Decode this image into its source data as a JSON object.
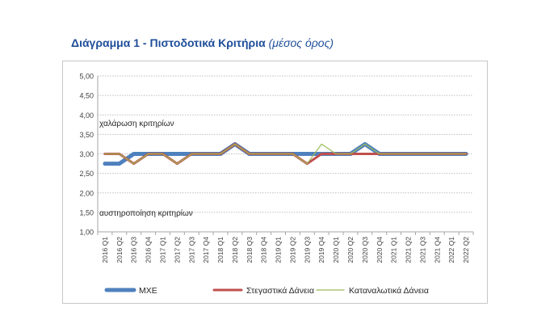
{
  "title": {
    "main": "Διάγραμμα 1 - Πιστοδοτικά Κριτήρια",
    "sub": "(μέσος όρος)"
  },
  "chart_data": {
    "type": "line",
    "categories": [
      "2016 Q1",
      "2016 Q2",
      "2016 Q3",
      "2016 Q4",
      "2017 Q1",
      "2017 Q2",
      "2017 Q3",
      "2017 Q4",
      "2018 Q1",
      "2018 Q2",
      "2018 Q3",
      "2018 Q4",
      "2019 Q1",
      "2019 Q2",
      "2019 Q3",
      "2019 Q4",
      "2020 Q1",
      "2020 Q2",
      "2020 Q3",
      "2020 Q4",
      "2021 Q1",
      "2021 Q2",
      "2021 Q3",
      "2021 Q4",
      "2022 Q1",
      "2022 Q2"
    ],
    "series": [
      {
        "name": "ΜΧΕ",
        "color": "#4f81bd",
        "values": [
          2.75,
          2.75,
          3.0,
          3.0,
          3.0,
          3.0,
          3.0,
          3.0,
          3.0,
          3.25,
          3.0,
          3.0,
          3.0,
          3.0,
          3.0,
          3.0,
          3.0,
          3.0,
          3.25,
          3.0,
          3.0,
          3.0,
          3.0,
          3.0,
          3.0,
          3.0
        ]
      },
      {
        "name": "Στεγαστικά Δάνεια",
        "color": "#c0504d",
        "values": [
          3.0,
          3.0,
          2.75,
          3.0,
          3.0,
          2.75,
          3.0,
          3.0,
          3.0,
          3.25,
          3.0,
          3.0,
          3.0,
          3.0,
          2.75,
          3.0,
          3.0,
          3.0,
          3.0,
          3.0,
          3.0,
          3.0,
          3.0,
          3.0,
          3.0,
          3.0
        ]
      },
      {
        "name": "Καταναλωτικά Δάνεια",
        "color": "#9bbb59",
        "values": [
          3.0,
          3.0,
          2.75,
          3.0,
          3.0,
          2.75,
          3.0,
          3.0,
          3.0,
          3.25,
          3.0,
          3.0,
          3.0,
          3.0,
          2.75,
          3.25,
          3.0,
          3.0,
          3.25,
          3.0,
          3.0,
          3.0,
          3.0,
          3.0,
          3.0,
          3.0
        ]
      }
    ],
    "y_ticks": [
      "5,00",
      "4,50",
      "4,00",
      "3,50",
      "3,00",
      "2,50",
      "2,00",
      "1,50",
      "1,00"
    ],
    "ylim": [
      1.0,
      5.0
    ],
    "grid": true,
    "legend_position": "bottom",
    "annotations": [
      {
        "text": "χαλάρωση κριτηρίων",
        "y": 3.8
      },
      {
        "text": "αυστηροποίηση κριτηρίων",
        "y": 1.5
      }
    ],
    "xlabel": "",
    "ylabel": ""
  }
}
